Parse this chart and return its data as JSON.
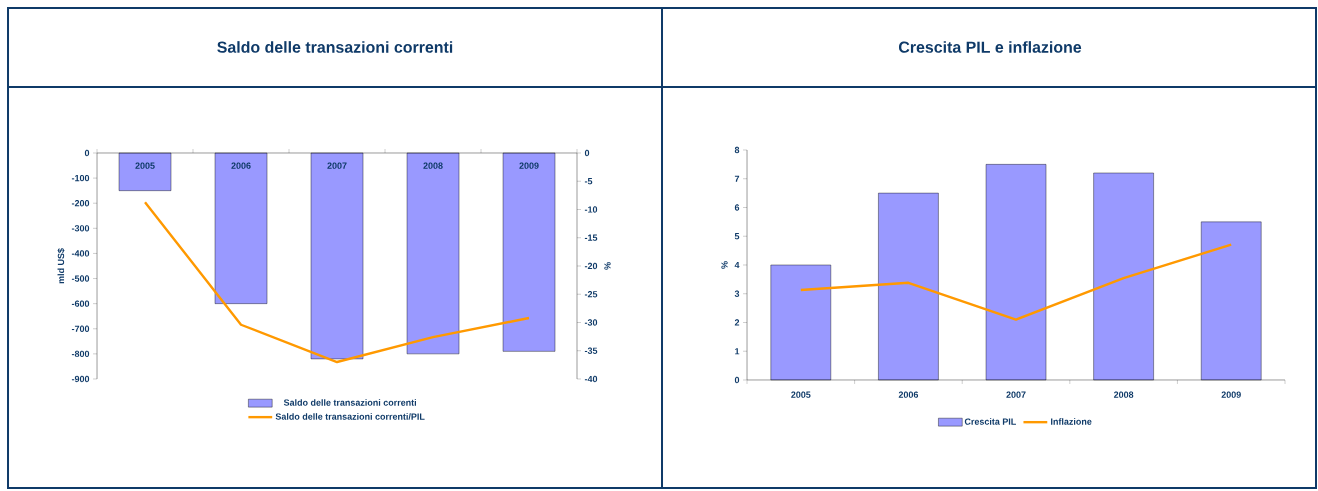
{
  "chart_data": [
    {
      "type": "bar",
      "title": "Saldo delle transazioni correnti",
      "categories": [
        "2005",
        "2006",
        "2007",
        "2008",
        "2009"
      ],
      "ylabel": "mld US$",
      "y2label": "%",
      "ylim": [
        -900,
        0
      ],
      "yticks": [
        -900,
        -800,
        -700,
        -600,
        -500,
        -400,
        -300,
        -200,
        -100,
        0
      ],
      "y2lim": [
        -40,
        0
      ],
      "y2ticks": [
        -40,
        -35,
        -30,
        -25,
        -20,
        -15,
        -10,
        -5,
        0
      ],
      "legend": "bottom",
      "series": [
        {
          "name": "Saldo delle transazioni correnti",
          "color": "#9999ff",
          "values": [
            -150,
            -600,
            -820,
            -800,
            -790
          ]
        },
        {
          "name": "Saldo delle transazioni correnti/PIL",
          "type": "line",
          "axis": "y2",
          "color": "#ff9900",
          "values": [
            -8.7,
            -30.4,
            -37.0,
            -32.6,
            -29.2
          ]
        }
      ]
    },
    {
      "type": "bar",
      "title": "Crescita PIL e inflazione",
      "categories": [
        "2005",
        "2006",
        "2007",
        "2008",
        "2009"
      ],
      "ylabel": "%",
      "ylim": [
        0,
        8
      ],
      "yticks": [
        0,
        1,
        2,
        3,
        4,
        5,
        6,
        7,
        8
      ],
      "legend": "bottom",
      "series": [
        {
          "name": "Crescita PIL",
          "color": "#9999ff",
          "values": [
            4.0,
            6.5,
            7.5,
            7.2,
            5.5
          ]
        },
        {
          "name": "Inflazione",
          "type": "line",
          "color": "#ff9900",
          "values": [
            3.13,
            3.38,
            2.1,
            3.54,
            4.71
          ]
        }
      ]
    }
  ]
}
